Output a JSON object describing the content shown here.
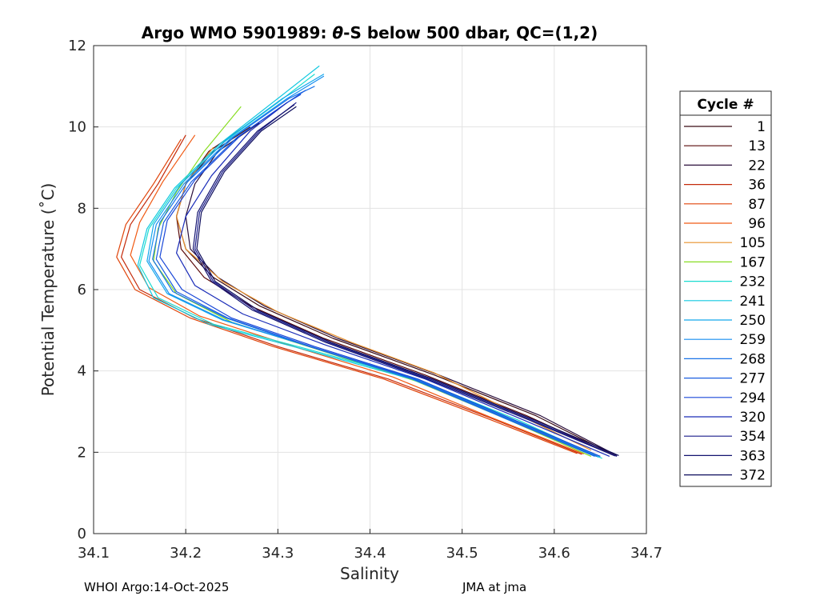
{
  "chart_data": {
    "type": "line",
    "title_prefix": "Argo WMO 5901989: ",
    "title_theta": "θ",
    "title_suffix": "-S below 500 dbar,  QC=(1,2)",
    "xlabel": "Salinity",
    "ylabel": "Potential Temperature (˚C)",
    "xlim": [
      34.1,
      34.7
    ],
    "ylim": [
      0,
      12
    ],
    "xticks": [
      34.1,
      34.2,
      34.3,
      34.4,
      34.5,
      34.6,
      34.7
    ],
    "yticks": [
      0,
      2,
      4,
      6,
      8,
      10,
      12
    ],
    "xtick_labels": [
      "34.1",
      "34.2",
      "34.3",
      "34.4",
      "34.5",
      "34.6",
      "34.7"
    ],
    "ytick_labels": [
      "0",
      "2",
      "4",
      "6",
      "8",
      "10",
      "12"
    ],
    "grid": true,
    "legend_title": "Cycle #",
    "legend_position": "right",
    "series": [
      {
        "name": "1",
        "color": "#3a0a14",
        "x": [
          34.665,
          34.58,
          34.47,
          34.36,
          34.28,
          34.23,
          34.2,
          34.19,
          34.2,
          34.23,
          34.27
        ],
        "y": [
          1.93,
          2.9,
          3.9,
          4.8,
          5.6,
          6.3,
          7.0,
          7.8,
          8.6,
          9.4,
          10.0
        ]
      },
      {
        "name": "13",
        "color": "#5a0a0a",
        "x": [
          34.662,
          34.57,
          34.46,
          34.35,
          34.27,
          34.22,
          34.195,
          34.19,
          34.2,
          34.225,
          34.26
        ],
        "y": [
          1.95,
          2.9,
          3.9,
          4.8,
          5.6,
          6.3,
          7.0,
          7.8,
          8.6,
          9.4,
          9.95
        ]
      },
      {
        "name": "22",
        "color": "#2a0f3c",
        "x": [
          34.668,
          34.585,
          34.475,
          34.365,
          34.285,
          34.235,
          34.205,
          34.2,
          34.21,
          34.235,
          34.28
        ],
        "y": [
          1.92,
          2.9,
          3.9,
          4.8,
          5.6,
          6.3,
          7.0,
          7.8,
          8.6,
          9.4,
          10.1
        ]
      },
      {
        "name": "36",
        "color": "#c42a0a",
        "x": [
          34.63,
          34.53,
          34.42,
          34.3,
          34.21,
          34.15,
          34.13,
          34.14,
          34.17,
          34.2
        ],
        "y": [
          1.95,
          2.85,
          3.8,
          4.6,
          5.3,
          6.0,
          6.8,
          7.6,
          8.6,
          9.8
        ]
      },
      {
        "name": "87",
        "color": "#e0440a",
        "x": [
          34.625,
          34.525,
          34.415,
          34.295,
          34.205,
          34.145,
          34.125,
          34.135,
          34.165,
          34.195
        ],
        "y": [
          1.97,
          2.85,
          3.8,
          4.6,
          5.3,
          6.0,
          6.8,
          7.6,
          8.6,
          9.7
        ]
      },
      {
        "name": "96",
        "color": "#f05a14",
        "x": [
          34.632,
          34.532,
          34.425,
          34.31,
          34.215,
          34.16,
          34.14,
          34.15,
          34.175,
          34.21
        ],
        "y": [
          1.96,
          2.85,
          3.85,
          4.65,
          5.35,
          6.05,
          6.85,
          7.65,
          8.65,
          9.8
        ]
      },
      {
        "name": "105",
        "color": "#e8902a",
        "x": [
          34.64,
          34.55,
          34.47,
          34.38,
          34.3,
          34.24,
          34.2,
          34.19,
          34.2,
          34.23
        ],
        "y": [
          2.05,
          3.05,
          3.95,
          4.7,
          5.45,
          6.2,
          7.0,
          7.8,
          8.6,
          9.5
        ]
      },
      {
        "name": "167",
        "color": "#88dd22",
        "x": [
          34.64,
          34.55,
          34.45,
          34.34,
          34.25,
          34.19,
          34.165,
          34.17,
          34.19,
          34.22,
          34.26
        ],
        "y": [
          1.9,
          2.8,
          3.75,
          4.55,
          5.2,
          5.9,
          6.7,
          7.5,
          8.4,
          9.4,
          10.5
        ]
      },
      {
        "name": "232",
        "color": "#1adcd0",
        "x": [
          34.652,
          34.56,
          34.45,
          34.33,
          34.23,
          34.17,
          34.15,
          34.16,
          34.19,
          34.24,
          34.3,
          34.34
        ],
        "y": [
          1.85,
          2.8,
          3.8,
          4.55,
          5.15,
          5.8,
          6.6,
          7.5,
          8.5,
          9.6,
          10.6,
          11.3
        ]
      },
      {
        "name": "241",
        "color": "#12c8e0",
        "x": [
          34.65,
          34.555,
          34.445,
          34.325,
          34.225,
          34.165,
          34.148,
          34.158,
          34.188,
          34.238,
          34.3,
          34.345
        ],
        "y": [
          1.87,
          2.8,
          3.8,
          4.55,
          5.15,
          5.8,
          6.6,
          7.5,
          8.5,
          9.6,
          10.7,
          11.5
        ]
      },
      {
        "name": "250",
        "color": "#14a8ec",
        "x": [
          34.648,
          34.555,
          34.45,
          34.335,
          34.24,
          34.18,
          34.158,
          34.165,
          34.195,
          34.245,
          34.305,
          34.35
        ],
        "y": [
          1.88,
          2.8,
          3.8,
          4.6,
          5.25,
          5.9,
          6.7,
          7.6,
          8.6,
          9.7,
          10.7,
          11.3
        ]
      },
      {
        "name": "259",
        "color": "#168ef0",
        "x": [
          34.646,
          34.552,
          34.448,
          34.335,
          34.242,
          34.182,
          34.16,
          34.168,
          34.198,
          34.248,
          34.31,
          34.35
        ],
        "y": [
          1.9,
          2.8,
          3.8,
          4.6,
          5.25,
          5.9,
          6.7,
          7.6,
          8.6,
          9.7,
          10.7,
          11.25
        ]
      },
      {
        "name": "268",
        "color": "#1a74e8",
        "x": [
          34.644,
          34.55,
          34.446,
          34.334,
          34.244,
          34.186,
          34.164,
          34.172,
          34.202,
          34.252,
          34.312,
          34.34
        ],
        "y": [
          1.9,
          2.8,
          3.8,
          4.6,
          5.3,
          5.95,
          6.75,
          7.65,
          8.65,
          9.75,
          10.7,
          11.0
        ]
      },
      {
        "name": "277",
        "color": "#1a5ee0",
        "x": [
          34.646,
          34.552,
          34.448,
          34.336,
          34.246,
          34.19,
          34.168,
          34.176,
          34.206,
          34.256,
          34.31,
          34.33
        ],
        "y": [
          1.9,
          2.8,
          3.8,
          4.6,
          5.3,
          5.95,
          6.75,
          7.65,
          8.65,
          9.75,
          10.6,
          10.9
        ]
      },
      {
        "name": "294",
        "color": "#1a48d8",
        "x": [
          34.65,
          34.556,
          34.452,
          34.34,
          34.25,
          34.196,
          34.172,
          34.18,
          34.21,
          34.26,
          34.31,
          34.325
        ],
        "y": [
          1.9,
          2.8,
          3.8,
          4.6,
          5.3,
          6.0,
          6.8,
          7.7,
          8.7,
          9.8,
          10.6,
          10.8
        ]
      },
      {
        "name": "320",
        "color": "#1a2cb8",
        "x": [
          34.66,
          34.566,
          34.46,
          34.35,
          34.262,
          34.21,
          34.19,
          34.2,
          34.228,
          34.27,
          34.31
        ],
        "y": [
          1.9,
          2.8,
          3.8,
          4.65,
          5.4,
          6.1,
          6.9,
          7.8,
          8.8,
          9.9,
          10.6
        ]
      },
      {
        "name": "354",
        "color": "#1a1c8c",
        "x": [
          34.668,
          34.575,
          34.465,
          34.355,
          34.275,
          34.23,
          34.21,
          34.215,
          34.24,
          34.28,
          34.32
        ],
        "y": [
          1.9,
          2.8,
          3.8,
          4.7,
          5.5,
          6.2,
          7.0,
          7.9,
          8.9,
          9.9,
          10.6
        ]
      },
      {
        "name": "363",
        "color": "#141470",
        "x": [
          34.666,
          34.572,
          34.462,
          34.352,
          34.272,
          34.228,
          34.208,
          34.213,
          34.238,
          34.278,
          34.318
        ],
        "y": [
          1.91,
          2.8,
          3.8,
          4.7,
          5.5,
          6.2,
          7.0,
          7.9,
          8.9,
          9.9,
          10.55
        ]
      },
      {
        "name": "372",
        "color": "#0c0c5c",
        "x": [
          34.67,
          34.578,
          34.468,
          34.358,
          34.278,
          34.232,
          34.212,
          34.217,
          34.242,
          34.282,
          34.32
        ],
        "y": [
          1.92,
          2.8,
          3.8,
          4.7,
          5.5,
          6.2,
          7.0,
          7.9,
          8.9,
          9.9,
          10.5
        ]
      }
    ]
  },
  "footer": {
    "left": "WHOI Argo:14-Oct-2025",
    "right": "JMA at jma"
  }
}
